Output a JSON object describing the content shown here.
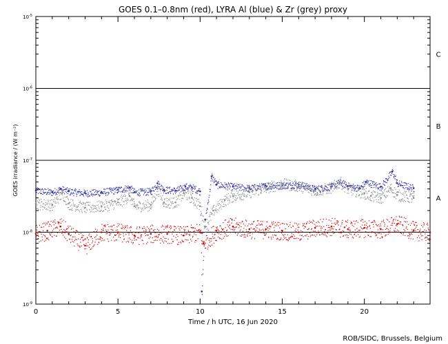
{
  "chart_data": {
    "type": "scatter",
    "title": "GOES 0.1–0.8nm (red), LYRA Al (blue) & Zr (grey) proxy",
    "xlabel": "Time / h UTC, 16 Jun 2020",
    "ylabel": "GOES irradiance / (W m⁻²)",
    "xlim": [
      0,
      24
    ],
    "ylim": [
      1e-09,
      1e-05
    ],
    "yscale": "log",
    "x_ticks": [
      0,
      5,
      10,
      15,
      20
    ],
    "y_ticks": [
      {
        "mantissa": "10",
        "exp": "-9",
        "value": 1e-09
      },
      {
        "mantissa": "10",
        "exp": "-8",
        "value": 1e-08
      },
      {
        "mantissa": "10",
        "exp": "-7",
        "value": 1e-07
      },
      {
        "mantissa": "10",
        "exp": "-6",
        "value": 1e-06
      },
      {
        "mantissa": "10",
        "exp": "-5",
        "value": 1e-05
      }
    ],
    "flare_class_lines": [
      1e-08,
      1e-07,
      1e-06
    ],
    "flare_classes": [
      {
        "label": "A",
        "value": 3e-08
      },
      {
        "label": "B",
        "value": 3e-07
      },
      {
        "label": "C",
        "value": 3e-06
      }
    ],
    "series": [
      {
        "color": "#2a2aa0",
        "points": [
          [
            0,
            3.8e-08
          ],
          [
            1,
            3.6e-08
          ],
          [
            1.5,
            4e-08
          ],
          [
            2,
            3.7e-08
          ],
          [
            3,
            3.5e-08
          ],
          [
            4,
            3.6e-08
          ],
          [
            5,
            3.9e-08
          ],
          [
            5.7,
            4.2e-08
          ],
          [
            6,
            3.6e-08
          ],
          [
            7,
            3.7e-08
          ],
          [
            7.4,
            4.8e-08
          ],
          [
            7.8,
            3.9e-08
          ],
          [
            8.5,
            3.8e-08
          ],
          [
            9.1,
            4.3e-08
          ],
          [
            9.5,
            4.2e-08
          ],
          [
            10,
            3.7e-08
          ],
          [
            10.1,
            1.5e-09
          ],
          [
            10.3,
            1.5e-08
          ],
          [
            10.7,
            6e-08
          ],
          [
            11,
            4.6e-08
          ],
          [
            12,
            4.3e-08
          ],
          [
            13,
            4.1e-08
          ],
          [
            14,
            4.4e-08
          ],
          [
            15,
            4.5e-08
          ],
          [
            16,
            4.6e-08
          ],
          [
            17,
            4e-08
          ],
          [
            18,
            4.3e-08
          ],
          [
            18.5,
            5e-08
          ],
          [
            19,
            4.4e-08
          ],
          [
            19.7,
            4.1e-08
          ],
          [
            20.1,
            5e-08
          ],
          [
            21,
            4.3e-08
          ],
          [
            21.7,
            7e-08
          ],
          [
            22,
            4.8e-08
          ],
          [
            23,
            4.1e-08
          ]
        ]
      },
      {
        "color": "#8c8c8c",
        "points": [
          [
            0,
            2.5e-08
          ],
          [
            1,
            2.4e-08
          ],
          [
            1.6,
            3.5e-08
          ],
          [
            2,
            2.5e-08
          ],
          [
            3,
            2.2e-08
          ],
          [
            4,
            2.3e-08
          ],
          [
            5,
            2.6e-08
          ],
          [
            5.7,
            3.2e-08
          ],
          [
            6,
            2.3e-08
          ],
          [
            7,
            2.4e-08
          ],
          [
            7.4,
            4e-08
          ],
          [
            7.8,
            2.6e-08
          ],
          [
            8.5,
            2.6e-08
          ],
          [
            9,
            3.5e-08
          ],
          [
            9.5,
            3e-08
          ],
          [
            10,
            2.3e-08
          ],
          [
            10.3,
            1.2e-08
          ],
          [
            10.8,
            2e-08
          ],
          [
            11.5,
            2.8e-08
          ],
          [
            12,
            3.2e-08
          ],
          [
            13,
            3.6e-08
          ],
          [
            14,
            4.2e-08
          ],
          [
            15,
            4.7e-08
          ],
          [
            16,
            4.4e-08
          ],
          [
            17,
            3.8e-08
          ],
          [
            18,
            4.2e-08
          ],
          [
            18.5,
            5e-08
          ],
          [
            19,
            4e-08
          ],
          [
            20,
            3.5e-08
          ],
          [
            20.4,
            3.2e-08
          ],
          [
            21,
            3e-08
          ],
          [
            21.6,
            4.1e-08
          ],
          [
            22,
            3.3e-08
          ],
          [
            23,
            3e-08
          ]
        ]
      },
      {
        "color": "#cc0000",
        "points": [
          [
            0,
            9.5e-09
          ],
          [
            0.7,
            1.05e-08
          ],
          [
            1.5,
            1.2e-08
          ],
          [
            2,
            9.5e-09
          ],
          [
            3,
            6.5e-09
          ],
          [
            4,
            1e-08
          ],
          [
            5,
            1e-08
          ],
          [
            6,
            9e-09
          ],
          [
            7,
            9.5e-09
          ],
          [
            8,
            9.5e-09
          ],
          [
            9,
            9e-09
          ],
          [
            10,
            1e-08
          ],
          [
            10.2,
            7e-09
          ],
          [
            11,
            1.05e-08
          ],
          [
            12,
            1.2e-08
          ],
          [
            13,
            1.1e-08
          ],
          [
            14,
            1.1e-08
          ],
          [
            15,
            1.05e-08
          ],
          [
            16,
            1e-08
          ],
          [
            17,
            1.15e-08
          ],
          [
            18,
            1.2e-08
          ],
          [
            19,
            1.1e-08
          ],
          [
            20,
            1.15e-08
          ],
          [
            21,
            1.1e-08
          ],
          [
            22,
            1.3e-08
          ],
          [
            23,
            1.05e-08
          ],
          [
            24,
            1e-08
          ]
        ]
      }
    ]
  },
  "footer": {
    "credit": "ROB/SIDC, Brussels, Belgium"
  }
}
